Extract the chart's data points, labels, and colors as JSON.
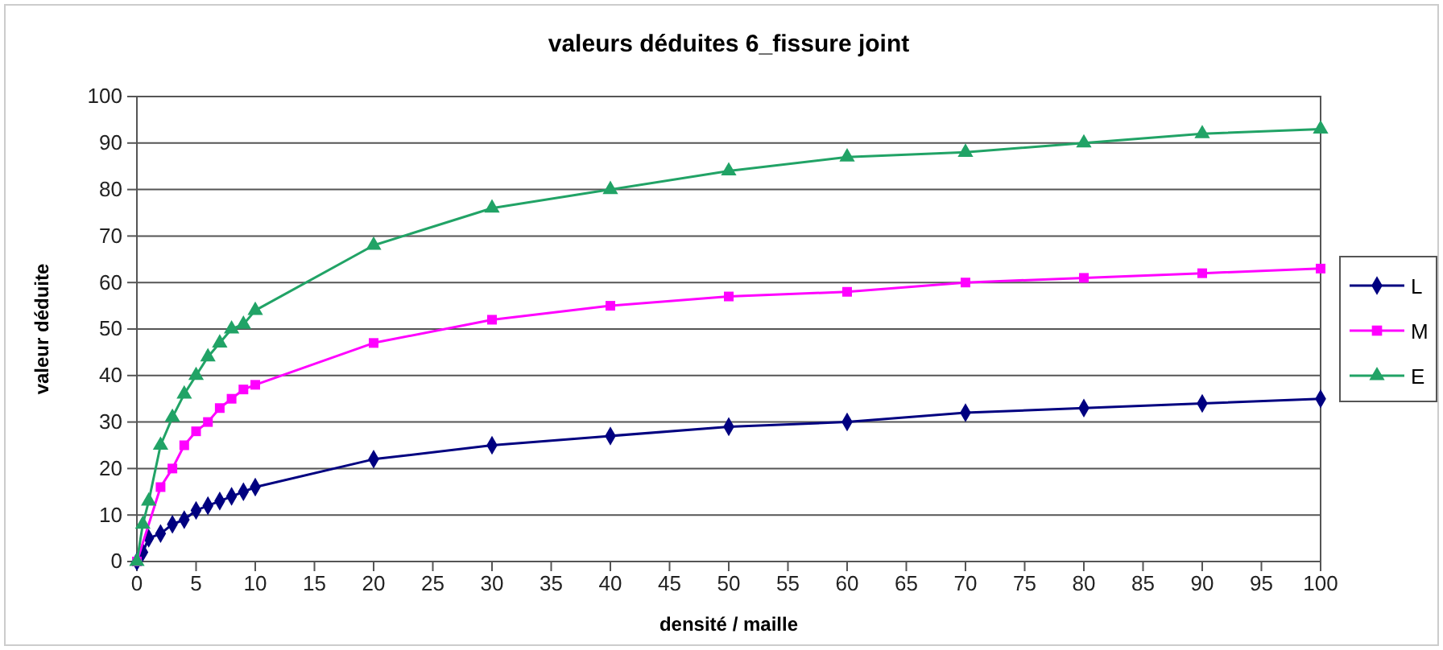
{
  "chart_data": {
    "type": "line",
    "title": "valeurs déduites 6_fissure joint",
    "xlabel": "densité / maille",
    "ylabel": "valeur déduite",
    "x": [
      0,
      0.5,
      1,
      2,
      3,
      4,
      5,
      6,
      7,
      8,
      9,
      10,
      20,
      30,
      40,
      50,
      60,
      70,
      80,
      90,
      100
    ],
    "series": [
      {
        "name": "L",
        "color": "#000080",
        "marker": "diamond",
        "values": [
          0,
          2,
          5,
          6,
          8,
          9,
          11,
          12,
          13,
          14,
          15,
          16,
          22,
          25,
          27,
          29,
          30,
          32,
          33,
          34,
          35
        ]
      },
      {
        "name": "M",
        "color": "#ff00ff",
        "marker": "square",
        "values": [
          0,
          null,
          null,
          16,
          20,
          25,
          28,
          30,
          33,
          35,
          37,
          38,
          47,
          52,
          55,
          57,
          58,
          60,
          61,
          62,
          63
        ]
      },
      {
        "name": "E",
        "color": "#21a366",
        "marker": "triangle",
        "values": [
          0,
          8,
          13,
          25,
          31,
          36,
          40,
          44,
          47,
          50,
          51,
          54,
          68,
          76,
          80,
          84,
          87,
          88,
          90,
          92,
          93
        ]
      }
    ],
    "xlim": [
      0,
      100
    ],
    "xticks": [
      0,
      5,
      10,
      15,
      20,
      25,
      30,
      35,
      40,
      45,
      50,
      55,
      60,
      65,
      70,
      75,
      80,
      85,
      90,
      95,
      100
    ],
    "ylim": [
      0,
      100
    ],
    "yticks": [
      0,
      10,
      20,
      30,
      40,
      50,
      60,
      70,
      80,
      90,
      100
    ],
    "grid": "y",
    "legend": "right"
  }
}
